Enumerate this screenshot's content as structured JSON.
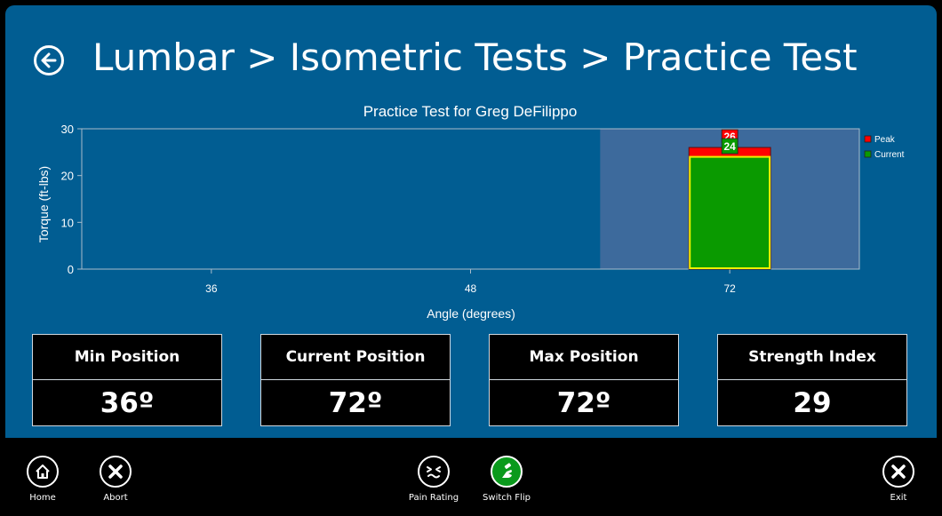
{
  "header": {
    "title": "Lumbar > Isometric Tests > Practice Test",
    "back_icon": "arrow-left-icon"
  },
  "chart_data": {
    "type": "bar",
    "title": "Practice Test for Greg  DeFilippo",
    "xlabel": "Angle (degrees)",
    "ylabel": "Torque (ft-lbs)",
    "ylim": [
      0,
      30
    ],
    "yticks": [
      0,
      10,
      20,
      30
    ],
    "categories": [
      "36",
      "48",
      "72"
    ],
    "highlight_category": "72",
    "series": [
      {
        "name": "Peak",
        "values": [
          null,
          null,
          26
        ],
        "labels": [
          "",
          "",
          "26"
        ],
        "color": "#ff0000"
      },
      {
        "name": "Current",
        "values": [
          null,
          null,
          24
        ],
        "labels": [
          "",
          "",
          "24"
        ],
        "color": "#0a9a00"
      }
    ],
    "legend": "top-right",
    "colors": {
      "plot_bg": "#015d92",
      "highlight_bg": "#3d6a9c",
      "axis": "#a9bccb",
      "current_border": "#f0f000"
    }
  },
  "stats": [
    {
      "label": "Min Position",
      "value": "36º"
    },
    {
      "label": "Current Position",
      "value": "72º"
    },
    {
      "label": "Max Position",
      "value": "72º"
    },
    {
      "label": "Strength Index",
      "value": "29"
    }
  ],
  "toolbar": {
    "home": {
      "label": "Home",
      "icon": "home-icon"
    },
    "abort": {
      "label": "Abort",
      "icon": "close-icon"
    },
    "pain": {
      "label": "Pain Rating",
      "icon": "pain-face-icon"
    },
    "switch": {
      "label": "Switch Flip",
      "icon": "switch-hand-icon"
    },
    "exit": {
      "label": "Exit",
      "icon": "close-icon"
    }
  },
  "colors": {
    "main_bg": "#015d92",
    "toolbar_bg": "#000000",
    "switch_active": "#0a9a1c"
  }
}
